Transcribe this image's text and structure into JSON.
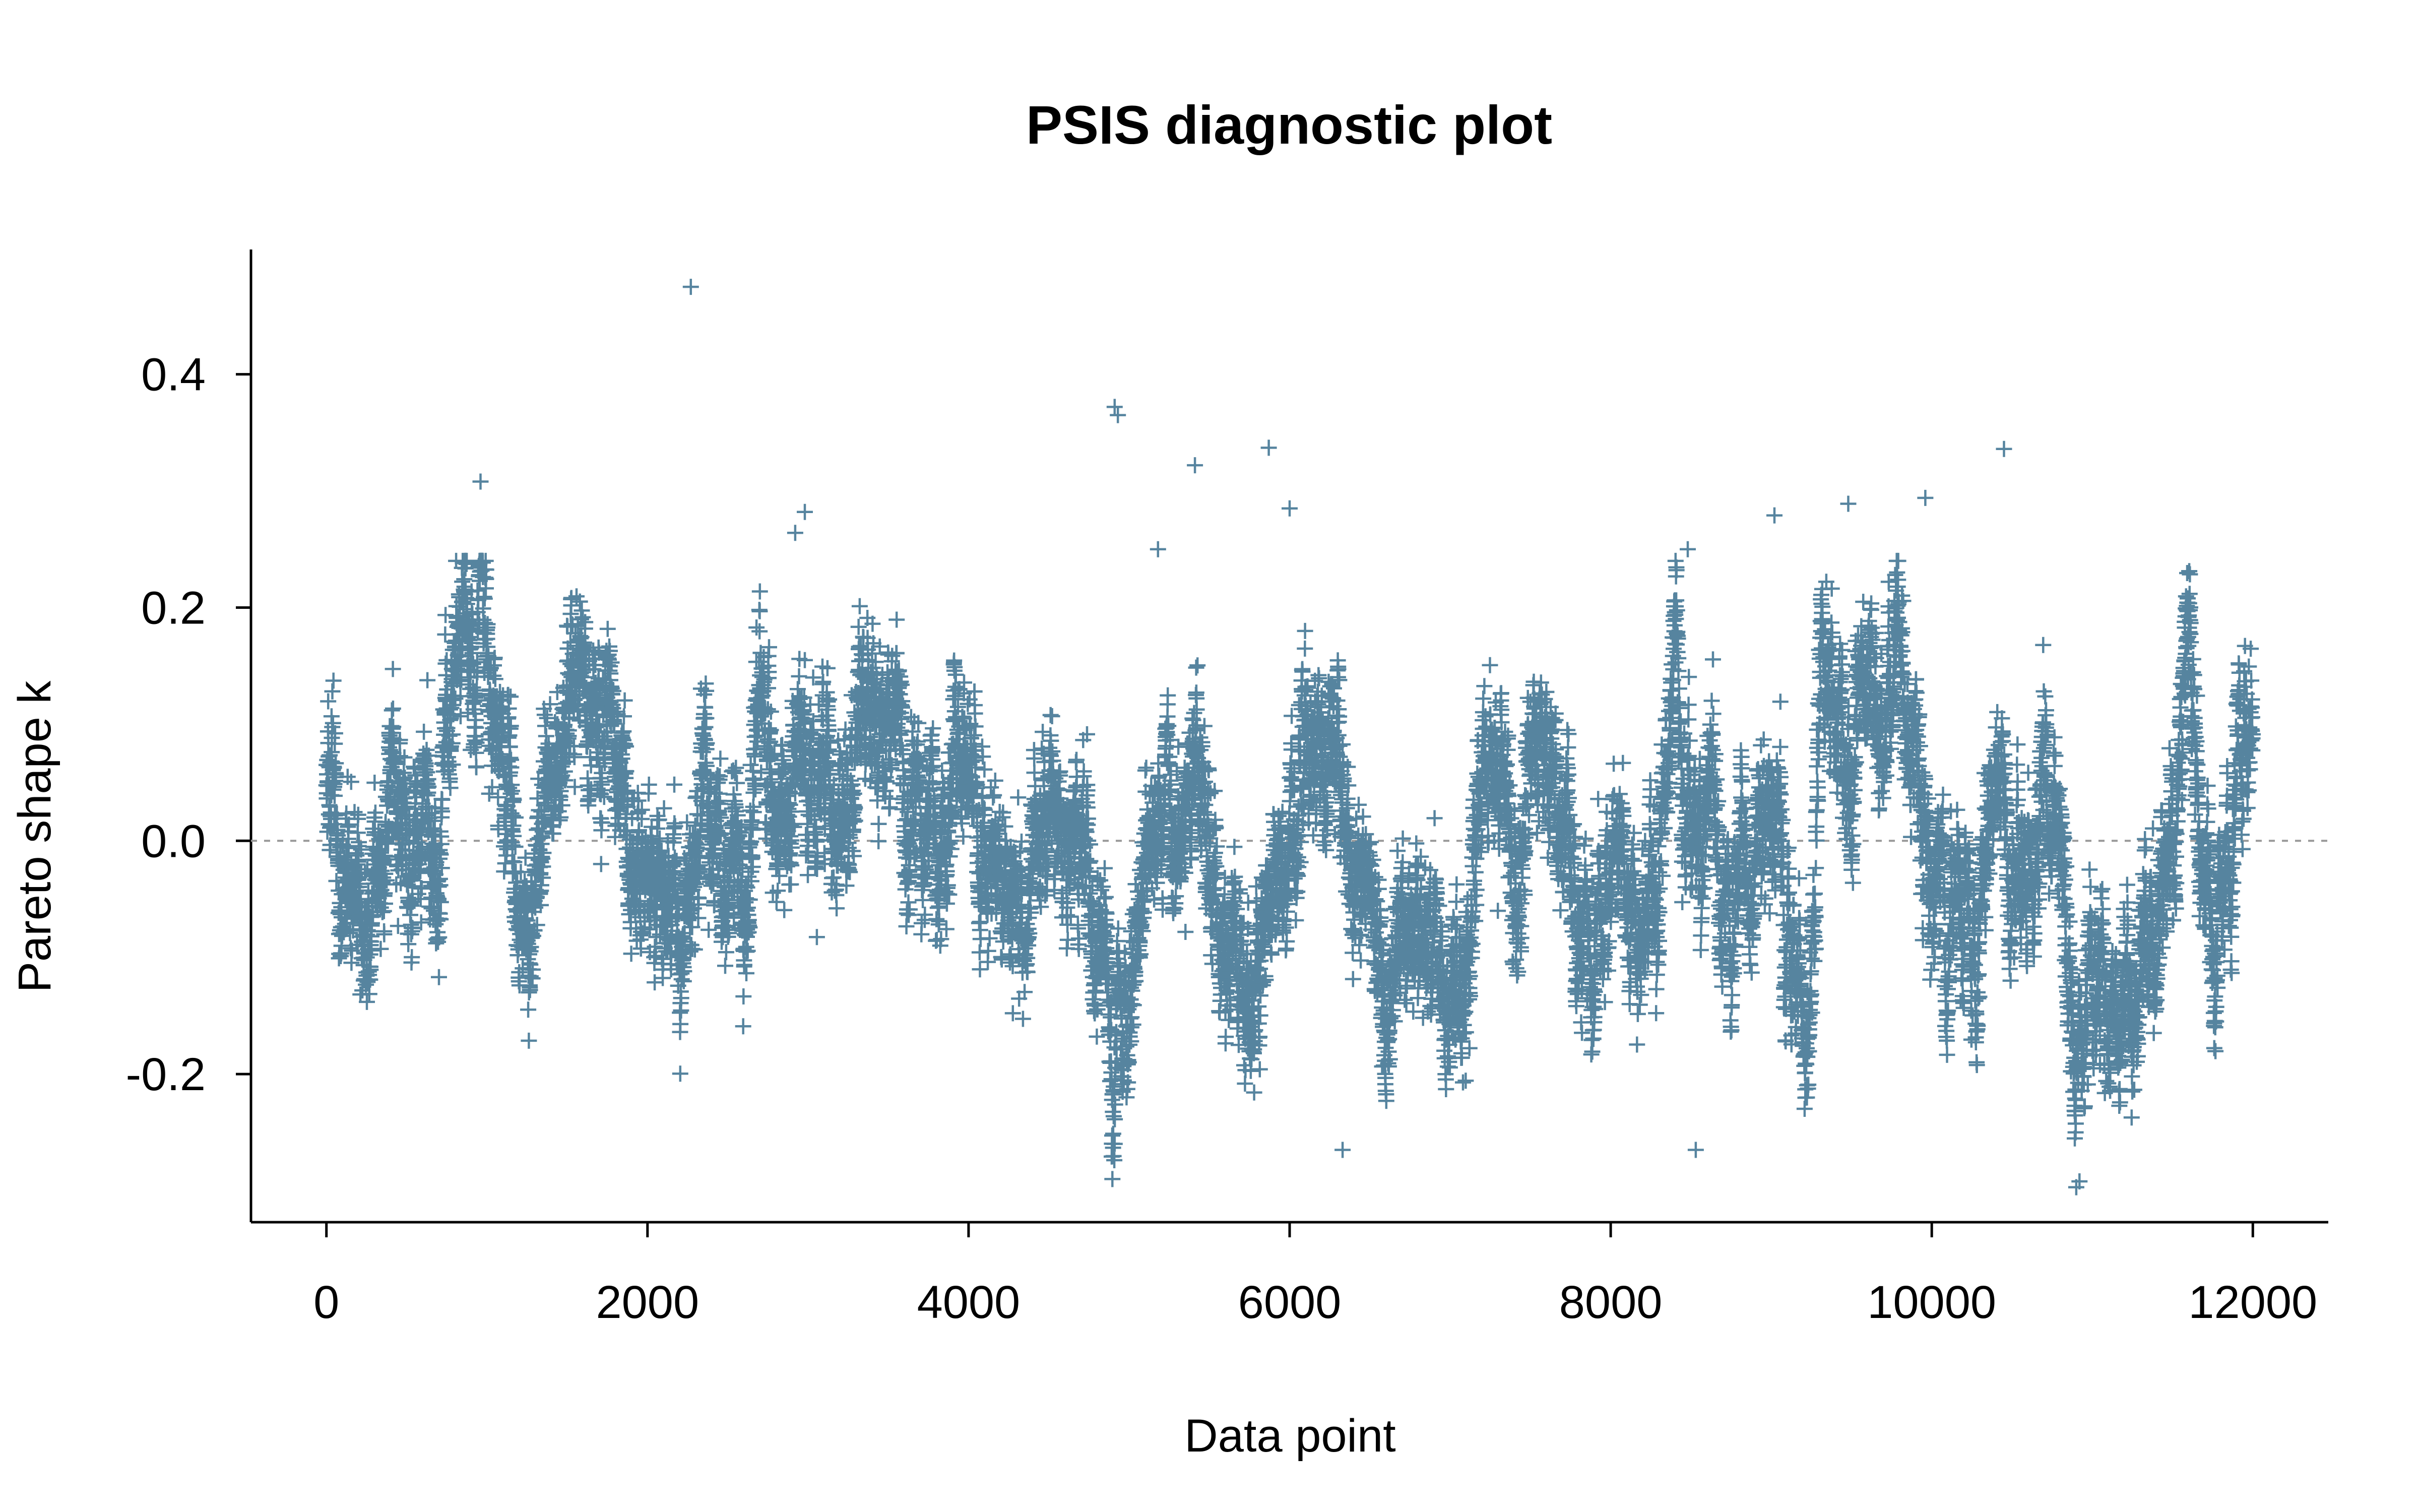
{
  "chart_data": {
    "type": "scatter",
    "title": "PSIS diagnostic plot",
    "xlabel": "Data point",
    "ylabel": "Pareto shape k",
    "xlim": [
      -470,
      12470
    ],
    "ylim": [
      -0.327,
      0.507
    ],
    "x_ticks": [
      0,
      2000,
      4000,
      6000,
      8000,
      10000,
      12000
    ],
    "x_tick_labels": [
      "0",
      "2000",
      "4000",
      "6000",
      "8000",
      "10000",
      "12000"
    ],
    "y_ticks": [
      -0.2,
      0.0,
      0.2,
      0.4
    ],
    "y_tick_labels": [
      "-0.2",
      "0.0",
      "0.2",
      "0.4"
    ],
    "reference_line_y": 0.0,
    "marker": "plus",
    "color": "#56849f",
    "n_points": 12000,
    "grid": false,
    "trend_anchors": {
      "x": [
        0,
        100,
        250,
        450,
        650,
        800,
        1000,
        1200,
        1400,
        1600,
        1800,
        2000,
        2200,
        2400,
        2600,
        2700,
        2800,
        3000,
        3200,
        3400,
        3600,
        3800,
        4000,
        4200,
        4400,
        4600,
        4800,
        5000,
        5200,
        5400,
        5600,
        5800,
        6000,
        6200,
        6400,
        6600,
        6800,
        7000,
        7200,
        7400,
        7600,
        7800,
        8000,
        8200,
        8400,
        8600,
        8800,
        9000,
        9200,
        9300,
        9500,
        9800,
        10000,
        10200,
        10400,
        10600,
        10800,
        10900,
        11000,
        11200,
        11400,
        11600,
        11800,
        12000
      ],
      "y": [
        0.06,
        0.03,
        -0.04,
        0.04,
        0.0,
        0.12,
        0.18,
        -0.07,
        0.0,
        0.16,
        0.08,
        -0.05,
        -0.08,
        0.05,
        -0.05,
        0.18,
        0.02,
        0.07,
        0.04,
        0.12,
        0.09,
        -0.03,
        0.06,
        -0.07,
        -0.03,
        0.02,
        -0.04,
        -0.17,
        0.03,
        0.05,
        -0.08,
        -0.1,
        0.05,
        0.1,
        0.0,
        -0.16,
        -0.1,
        -0.15,
        0.05,
        -0.01,
        0.09,
        -0.07,
        0.02,
        -0.1,
        0.1,
        -0.03,
        -0.05,
        0.0,
        -0.16,
        0.12,
        0.05,
        0.12,
        0.0,
        -0.08,
        0.03,
        -0.02,
        0.06,
        -0.22,
        -0.12,
        -0.16,
        -0.05,
        0.12,
        -0.08,
        0.05
      ]
    },
    "outliers": {
      "x": [
        2270,
        4910,
        4930,
        5410,
        5870,
        6000,
        960,
        10450,
        9480,
        9960,
        9020,
        8480,
        8530,
        10900,
        10920,
        2920,
        2980,
        5180,
        6330
      ],
      "y": [
        0.475,
        0.372,
        0.365,
        0.322,
        0.337,
        0.285,
        0.308,
        0.336,
        0.289,
        0.294,
        0.279,
        0.25,
        -0.265,
        -0.297,
        -0.292,
        0.264,
        0.282,
        0.25,
        -0.265
      ]
    }
  }
}
